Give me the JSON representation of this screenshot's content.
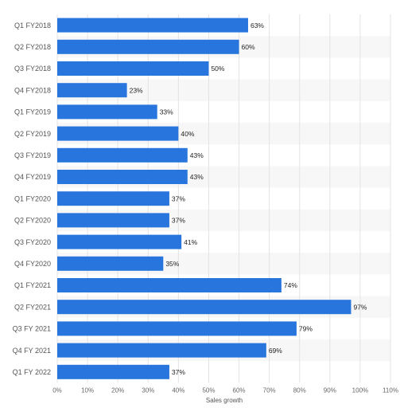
{
  "chart_data": {
    "type": "bar",
    "orientation": "horizontal",
    "categories": [
      "Q1 FY2018",
      "Q2 FY2018",
      "Q3 FY2018",
      "Q4 FY2018",
      "Q1 FY2019",
      "Q2 FY2019",
      "Q3 FY2019",
      "Q4 FY2019",
      "Q1 FY2020",
      "Q2 FY2020",
      "Q3 FY2020",
      "Q4 FY2020",
      "Q1 FY2021",
      "Q2 FY2021",
      "Q3 FY 2021",
      "Q4 FY 2021",
      "Q1 FY 2022"
    ],
    "values": [
      63,
      60,
      50,
      23,
      33,
      40,
      43,
      43,
      37,
      37,
      41,
      35,
      74,
      97,
      79,
      69,
      37
    ],
    "data_labels": [
      "63%",
      "60%",
      "50%",
      "23%",
      "33%",
      "40%",
      "43%",
      "43%",
      "37%",
      "37%",
      "41%",
      "35%",
      "74%",
      "97%",
      "79%",
      "69%",
      "37%"
    ],
    "title": "",
    "xlabel": "Sales growth",
    "ylabel": "",
    "xlim": [
      0,
      110
    ],
    "x_ticks": [
      0,
      10,
      20,
      30,
      40,
      50,
      60,
      70,
      80,
      90,
      100,
      110
    ],
    "x_tick_labels": [
      "0%",
      "10%",
      "20%",
      "30%",
      "40%",
      "50%",
      "60%",
      "70%",
      "80%",
      "90%",
      "100%",
      "110%"
    ],
    "grid": true,
    "bar_color": "#2876dd",
    "band_color": "#f7f7f7"
  }
}
